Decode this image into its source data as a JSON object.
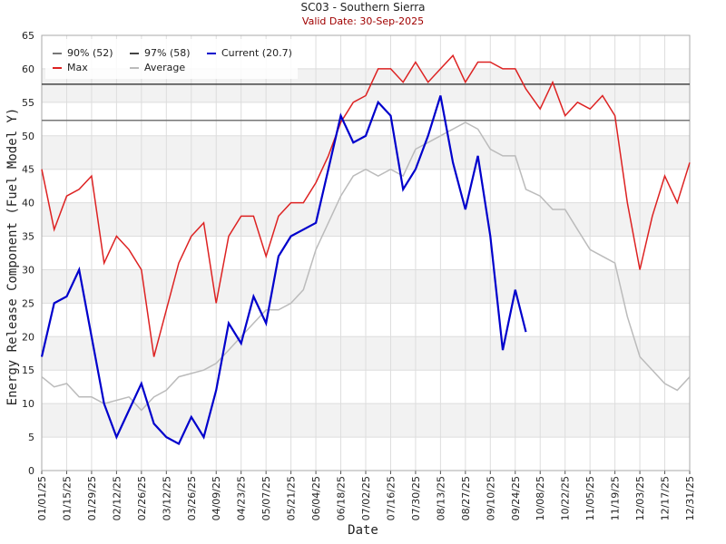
{
  "chart_data": {
    "type": "line",
    "title": "SC03 - Southern Sierra",
    "subtitle": "Valid Date: 30-Sep-2025",
    "xlabel": "Date",
    "ylabel": "Energy Release Component (Fuel Model Y)",
    "x": [
      "01/01/25",
      "01/08/25",
      "01/15/25",
      "01/22/25",
      "01/29/25",
      "02/05/25",
      "02/12/25",
      "02/19/25",
      "02/26/25",
      "03/05/25",
      "03/12/25",
      "03/19/25",
      "03/26/25",
      "04/02/25",
      "04/09/25",
      "04/16/25",
      "04/23/25",
      "04/30/25",
      "05/07/25",
      "05/14/25",
      "05/21/25",
      "05/28/25",
      "06/04/25",
      "06/11/25",
      "06/18/25",
      "06/25/25",
      "07/02/25",
      "07/09/25",
      "07/16/25",
      "07/23/25",
      "07/30/25",
      "08/06/25",
      "08/13/25",
      "08/20/25",
      "08/27/25",
      "09/03/25",
      "09/10/25",
      "09/17/25",
      "09/24/25",
      "09/30/25",
      "10/08/25",
      "10/15/25",
      "10/22/25",
      "10/29/25",
      "11/05/25",
      "11/12/25",
      "11/19/25",
      "11/26/25",
      "12/03/25",
      "12/10/25",
      "12/17/25",
      "12/24/25",
      "12/31/25"
    ],
    "xlim": [
      "01/01/25",
      "12/31/25"
    ],
    "xticks": [
      "01/01/25",
      "01/15/25",
      "01/29/25",
      "02/12/25",
      "02/26/25",
      "03/12/25",
      "03/26/25",
      "04/09/25",
      "04/23/25",
      "05/07/25",
      "05/21/25",
      "06/04/25",
      "06/18/25",
      "07/02/25",
      "07/16/25",
      "07/30/25",
      "08/13/25",
      "08/27/25",
      "09/10/25",
      "09/24/25",
      "10/08/25",
      "10/22/25",
      "11/05/25",
      "11/19/25",
      "12/03/25",
      "12/17/25",
      "12/31/25"
    ],
    "ylim": [
      0,
      65
    ],
    "yticks": [
      0,
      5,
      10,
      15,
      20,
      25,
      30,
      35,
      40,
      45,
      50,
      55,
      60,
      65
    ],
    "reference_lines": [
      {
        "name": "90% (52)",
        "color": "#777777",
        "value": 52.3
      },
      {
        "name": "97% (58)",
        "color": "#444444",
        "value": 57.7
      }
    ],
    "series": [
      {
        "name": "Current (20.7)",
        "color": "#0000cc",
        "values": [
          17,
          25,
          26,
          30,
          20,
          10,
          5,
          9,
          13,
          7,
          5,
          4,
          8,
          5,
          12,
          22,
          19,
          26,
          22,
          32,
          35,
          36,
          37,
          45,
          53,
          49,
          50,
          55,
          53,
          42,
          45,
          50,
          56,
          46,
          39,
          47,
          35,
          18,
          27,
          20.7,
          null,
          null,
          null,
          null,
          null,
          null,
          null,
          null,
          null,
          null,
          null,
          null,
          null
        ]
      },
      {
        "name": "Max",
        "color": "#dd2222",
        "values": [
          45,
          36,
          41,
          42,
          44,
          31,
          35,
          33,
          30,
          17,
          24,
          31,
          35,
          37,
          25,
          35,
          38,
          38,
          32,
          38,
          40,
          40,
          43,
          47,
          52,
          55,
          56,
          60,
          60,
          58,
          61,
          58,
          60,
          62,
          58,
          61,
          61,
          60,
          60,
          57,
          54,
          58,
          53,
          55,
          54,
          56,
          53,
          40,
          30,
          38,
          44,
          40,
          46
        ]
      },
      {
        "name": "Average",
        "color": "#bbbbbb",
        "values": [
          14,
          12.5,
          13,
          11,
          11,
          10,
          10.5,
          11,
          9,
          11,
          12,
          14,
          14.5,
          15,
          16,
          18,
          20,
          22,
          24,
          24,
          25,
          27,
          33,
          37,
          41,
          44,
          45,
          44,
          45,
          44,
          48,
          49,
          50,
          51,
          52,
          51,
          48,
          47,
          47,
          42,
          41,
          39,
          39,
          36,
          33,
          32,
          31,
          23,
          17,
          15,
          13,
          12,
          14
        ]
      }
    ],
    "grid": true
  }
}
